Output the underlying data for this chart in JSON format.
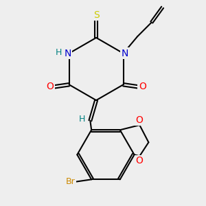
{
  "bg_color": "#eeeeee",
  "atom_colors": {
    "C": "#000000",
    "N": "#0000cc",
    "O": "#ff0000",
    "S": "#cccc00",
    "H": "#008080",
    "Br": "#cc8800"
  }
}
